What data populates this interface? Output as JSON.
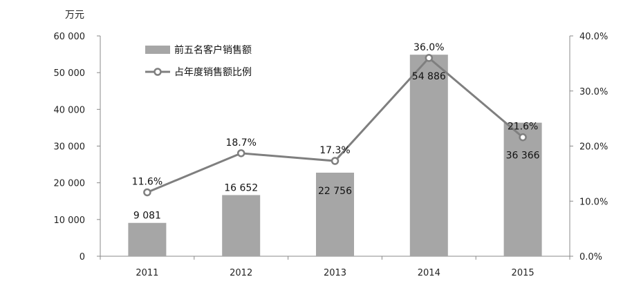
{
  "chart_data": {
    "type": "bar-line",
    "unit_label": "万元",
    "categories": [
      "2011",
      "2012",
      "2013",
      "2014",
      "2015"
    ],
    "series": [
      {
        "name": "前五名客户销售额",
        "type": "bar",
        "axis": "left",
        "values": [
          9081,
          16652,
          22756,
          54886,
          36366
        ],
        "labels": [
          "9 081",
          "16 652",
          "22 756",
          "54 886",
          "36 366"
        ],
        "color": "#a6a6a6"
      },
      {
        "name": "占年度销售额比例",
        "type": "line",
        "axis": "right",
        "values": [
          11.6,
          18.7,
          17.3,
          36.0,
          21.6
        ],
        "labels": [
          "11.6%",
          "18.7%",
          "17.3%",
          "36.0%",
          "21.6%"
        ],
        "color": "#7f7f7f"
      }
    ],
    "left_axis": {
      "ylim": [
        0,
        60000
      ],
      "ticks": [
        0,
        10000,
        20000,
        30000,
        40000,
        50000,
        60000
      ],
      "tick_labels": [
        "0",
        "10 000",
        "20 000",
        "30 000",
        "40 000",
        "50 000",
        "60 000"
      ]
    },
    "right_axis": {
      "ylim": [
        0,
        40
      ],
      "ticks": [
        0,
        10,
        20,
        30,
        40
      ],
      "tick_labels": [
        "0.0%",
        "10.0%",
        "20.0%",
        "30.0%",
        "40.0%"
      ]
    },
    "grid": false,
    "legend_position": "top-left"
  }
}
